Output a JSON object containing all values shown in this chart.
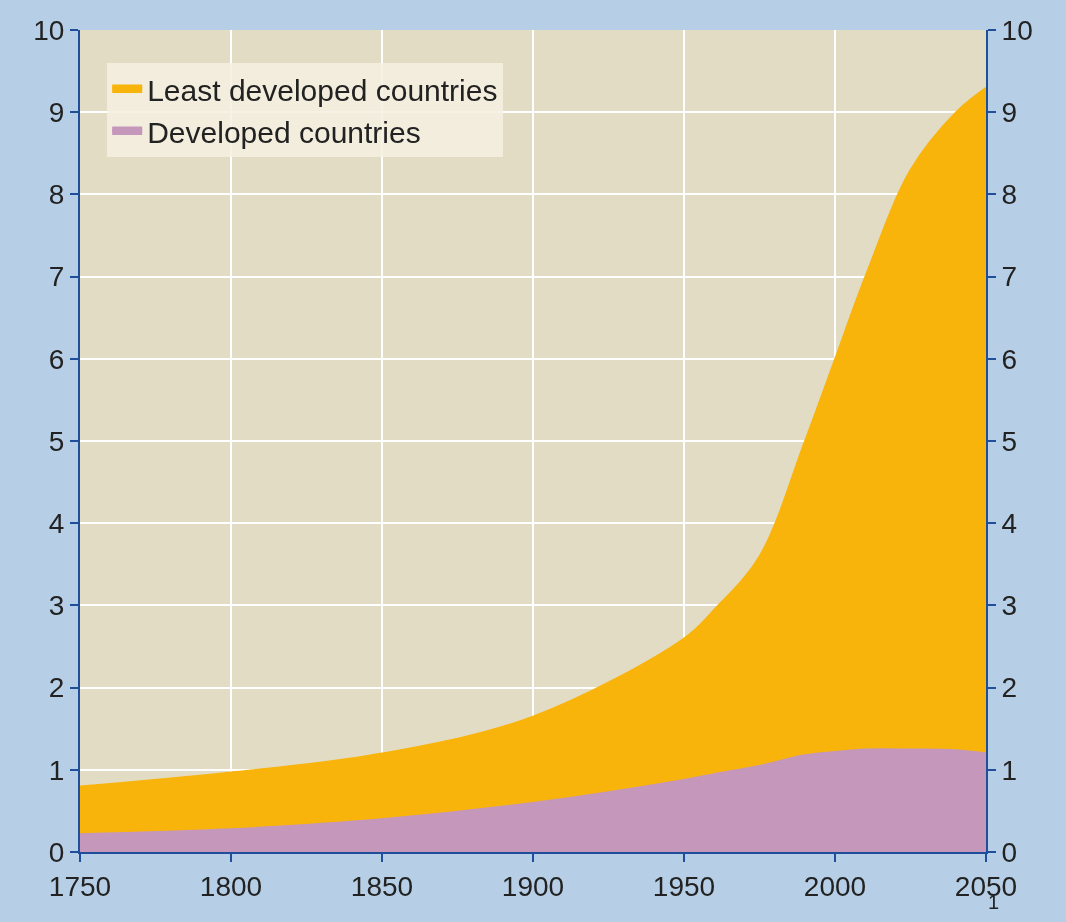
{
  "chart_data": {
    "type": "area",
    "stacked": true,
    "x": [
      1750,
      1800,
      1850,
      1900,
      1950,
      1960,
      1975,
      1990,
      2000,
      2010,
      2025,
      2040,
      2050
    ],
    "series": [
      {
        "name": "Developed countries",
        "color": "#c597bb",
        "values": [
          0.22,
          0.28,
          0.4,
          0.6,
          0.88,
          0.95,
          1.05,
          1.18,
          1.22,
          1.25,
          1.25,
          1.24,
          1.2
        ]
      },
      {
        "name": "Least developed countries",
        "color": "#f9b40c",
        "values": [
          0.58,
          0.69,
          0.8,
          1.05,
          1.72,
          2.0,
          2.55,
          3.82,
          4.78,
          5.75,
          7.05,
          7.76,
          8.1
        ]
      }
    ],
    "xlim": [
      1750,
      2050
    ],
    "xticks": [
      1750,
      1800,
      1850,
      1900,
      1950,
      2000,
      2050
    ],
    "ylim": [
      0,
      10
    ],
    "yticks": [
      0,
      1,
      2,
      3,
      4,
      5,
      6,
      7,
      8,
      9,
      10
    ],
    "y2lim": [
      0,
      10
    ],
    "y2ticks": [
      0,
      1,
      2,
      3,
      4,
      5,
      6,
      7,
      8,
      9,
      10
    ],
    "grid": true,
    "legend": "top left",
    "annotations": [
      "1"
    ]
  }
}
